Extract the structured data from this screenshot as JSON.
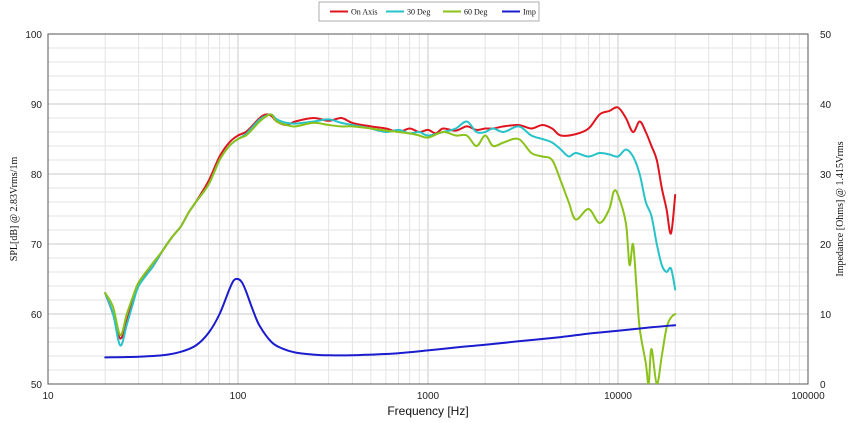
{
  "chart_data": {
    "type": "line",
    "title": "",
    "xlabel": "Frequency [Hz]",
    "ylabel": "SPL[dB] @ 2.83Vrms/1m",
    "y2label": "Impedance [Ohms] @ 1.415Vrms",
    "x_scale": "log",
    "xlim": [
      10,
      100000
    ],
    "ylim": [
      50,
      100
    ],
    "y2lim": [
      0,
      50
    ],
    "x_ticks": [
      10,
      100,
      1000,
      10000,
      100000
    ],
    "x_tick_labels": [
      "10",
      "100",
      "1000",
      "10000",
      "100000"
    ],
    "y_ticks": [
      50,
      60,
      70,
      80,
      90,
      100
    ],
    "y_tick_labels": [
      "50",
      "60",
      "70",
      "80",
      "90",
      "100"
    ],
    "y2_ticks": [
      0,
      10,
      20,
      30,
      40,
      50
    ],
    "y2_tick_labels": [
      "0",
      "10",
      "20",
      "30",
      "40",
      "50"
    ],
    "grid": true,
    "legend_position": "top-center",
    "series": [
      {
        "name": "On Axis",
        "color": "#e0141e",
        "axis": "left",
        "points": [
          [
            20,
            63
          ],
          [
            22,
            60
          ],
          [
            24,
            56.5
          ],
          [
            26,
            59
          ],
          [
            28,
            62
          ],
          [
            30,
            64.5
          ],
          [
            35,
            66.5
          ],
          [
            40,
            69
          ],
          [
            45,
            71
          ],
          [
            50,
            72.5
          ],
          [
            55,
            74.5
          ],
          [
            60,
            76
          ],
          [
            70,
            79
          ],
          [
            80,
            82.5
          ],
          [
            90,
            84.5
          ],
          [
            100,
            85.5
          ],
          [
            110,
            86
          ],
          [
            120,
            87
          ],
          [
            130,
            88
          ],
          [
            140,
            88.5
          ],
          [
            150,
            88.3
          ],
          [
            160,
            87.5
          ],
          [
            180,
            87
          ],
          [
            200,
            87.5
          ],
          [
            250,
            88
          ],
          [
            300,
            87.6
          ],
          [
            350,
            88
          ],
          [
            400,
            87.3
          ],
          [
            500,
            86.8
          ],
          [
            600,
            86.5
          ],
          [
            700,
            86
          ],
          [
            800,
            86.5
          ],
          [
            900,
            86
          ],
          [
            1000,
            86.3
          ],
          [
            1100,
            85.8
          ],
          [
            1200,
            86.5
          ],
          [
            1400,
            86.2
          ],
          [
            1600,
            86.8
          ],
          [
            1800,
            86.3
          ],
          [
            2000,
            86.5
          ],
          [
            2200,
            86.5
          ],
          [
            2500,
            86.8
          ],
          [
            3000,
            87
          ],
          [
            3500,
            86.5
          ],
          [
            4000,
            87
          ],
          [
            4500,
            86.5
          ],
          [
            5000,
            85.5
          ],
          [
            6000,
            85.7
          ],
          [
            7000,
            86.5
          ],
          [
            8000,
            88.5
          ],
          [
            9000,
            89
          ],
          [
            10000,
            89.5
          ],
          [
            11000,
            88
          ],
          [
            12000,
            86
          ],
          [
            13000,
            87.5
          ],
          [
            14000,
            86
          ],
          [
            15000,
            84
          ],
          [
            16000,
            82
          ],
          [
            17000,
            78
          ],
          [
            18000,
            75
          ],
          [
            19000,
            71.5
          ],
          [
            20000,
            77
          ]
        ]
      },
      {
        "name": "30 Deg",
        "color": "#27c3c8",
        "axis": "left",
        "points": [
          [
            20,
            63
          ],
          [
            22,
            60
          ],
          [
            24,
            55.5
          ],
          [
            26,
            58.5
          ],
          [
            28,
            61.5
          ],
          [
            30,
            64
          ],
          [
            35,
            66.5
          ],
          [
            40,
            69
          ],
          [
            45,
            71
          ],
          [
            50,
            72.5
          ],
          [
            55,
            74.5
          ],
          [
            60,
            76
          ],
          [
            70,
            78.5
          ],
          [
            80,
            82
          ],
          [
            90,
            84
          ],
          [
            100,
            85
          ],
          [
            110,
            85.7
          ],
          [
            120,
            86.8
          ],
          [
            130,
            87.8
          ],
          [
            140,
            88.3
          ],
          [
            150,
            88.5
          ],
          [
            160,
            87.8
          ],
          [
            180,
            87.3
          ],
          [
            200,
            87.2
          ],
          [
            250,
            87.5
          ],
          [
            300,
            87.8
          ],
          [
            350,
            87.3
          ],
          [
            400,
            87
          ],
          [
            500,
            86.5
          ],
          [
            600,
            86
          ],
          [
            700,
            86.3
          ],
          [
            800,
            85.8
          ],
          [
            900,
            86
          ],
          [
            1000,
            85.5
          ],
          [
            1200,
            86
          ],
          [
            1400,
            86.5
          ],
          [
            1600,
            87.5
          ],
          [
            1800,
            86
          ],
          [
            2000,
            86
          ],
          [
            2200,
            86.5
          ],
          [
            2500,
            86
          ],
          [
            3000,
            86.8
          ],
          [
            3500,
            85.5
          ],
          [
            4000,
            85
          ],
          [
            4500,
            84.5
          ],
          [
            5000,
            83.5
          ],
          [
            5500,
            82.5
          ],
          [
            6000,
            83
          ],
          [
            7000,
            82.5
          ],
          [
            8000,
            83
          ],
          [
            9000,
            82.8
          ],
          [
            10000,
            82.5
          ],
          [
            11000,
            83.5
          ],
          [
            12000,
            82.5
          ],
          [
            13000,
            80
          ],
          [
            14000,
            76
          ],
          [
            15000,
            74
          ],
          [
            16000,
            70
          ],
          [
            17000,
            67
          ],
          [
            18000,
            66
          ],
          [
            19000,
            66.5
          ],
          [
            20000,
            63.5
          ]
        ]
      },
      {
        "name": "60 Deg",
        "color": "#8bc21a",
        "axis": "left",
        "points": [
          [
            20,
            63
          ],
          [
            22,
            61
          ],
          [
            24,
            57
          ],
          [
            26,
            60
          ],
          [
            28,
            62.5
          ],
          [
            30,
            64.5
          ],
          [
            35,
            67
          ],
          [
            40,
            69
          ],
          [
            45,
            71
          ],
          [
            50,
            72.5
          ],
          [
            55,
            74.5
          ],
          [
            60,
            76
          ],
          [
            70,
            78.5
          ],
          [
            80,
            82
          ],
          [
            90,
            84
          ],
          [
            100,
            85
          ],
          [
            110,
            85.5
          ],
          [
            120,
            86.5
          ],
          [
            130,
            87.5
          ],
          [
            140,
            88.2
          ],
          [
            150,
            88.5
          ],
          [
            160,
            87.5
          ],
          [
            180,
            87
          ],
          [
            200,
            86.8
          ],
          [
            250,
            87.3
          ],
          [
            300,
            87
          ],
          [
            350,
            86.8
          ],
          [
            400,
            86.8
          ],
          [
            500,
            86.5
          ],
          [
            600,
            86.2
          ],
          [
            700,
            86
          ],
          [
            800,
            85.8
          ],
          [
            900,
            85.5
          ],
          [
            1000,
            85.2
          ],
          [
            1200,
            86
          ],
          [
            1400,
            85.5
          ],
          [
            1600,
            85.5
          ],
          [
            1800,
            84
          ],
          [
            2000,
            85.5
          ],
          [
            2200,
            84
          ],
          [
            2500,
            84.5
          ],
          [
            3000,
            85
          ],
          [
            3500,
            83
          ],
          [
            4000,
            82.5
          ],
          [
            4500,
            82
          ],
          [
            5000,
            79
          ],
          [
            5500,
            76
          ],
          [
            6000,
            73.5
          ],
          [
            7000,
            75
          ],
          [
            8000,
            73
          ],
          [
            9000,
            75
          ],
          [
            9500,
            77.5
          ],
          [
            10000,
            77
          ],
          [
            11000,
            73
          ],
          [
            11500,
            67
          ],
          [
            12000,
            70
          ],
          [
            12500,
            64
          ],
          [
            13000,
            58
          ],
          [
            14000,
            53
          ],
          [
            14500,
            50
          ],
          [
            15000,
            55
          ],
          [
            16000,
            50
          ],
          [
            17000,
            54
          ],
          [
            18000,
            58
          ],
          [
            19000,
            59.5
          ],
          [
            20000,
            60
          ]
        ]
      },
      {
        "name": "Imp",
        "color": "#1c1ccf",
        "axis": "right",
        "points": [
          [
            20,
            3.8
          ],
          [
            30,
            3.9
          ],
          [
            40,
            4.1
          ],
          [
            50,
            4.6
          ],
          [
            60,
            5.5
          ],
          [
            70,
            7.3
          ],
          [
            80,
            10
          ],
          [
            90,
            13.5
          ],
          [
            95,
            14.8
          ],
          [
            100,
            15
          ],
          [
            105,
            14.5
          ],
          [
            110,
            13.3
          ],
          [
            120,
            10.5
          ],
          [
            130,
            8.3
          ],
          [
            150,
            6
          ],
          [
            170,
            5.1
          ],
          [
            200,
            4.5
          ],
          [
            250,
            4.2
          ],
          [
            300,
            4.1
          ],
          [
            400,
            4.1
          ],
          [
            500,
            4.2
          ],
          [
            700,
            4.4
          ],
          [
            1000,
            4.8
          ],
          [
            1500,
            5.3
          ],
          [
            2000,
            5.6
          ],
          [
            3000,
            6.1
          ],
          [
            5000,
            6.7
          ],
          [
            7000,
            7.2
          ],
          [
            10000,
            7.6
          ],
          [
            15000,
            8.1
          ],
          [
            20000,
            8.4
          ]
        ]
      }
    ]
  }
}
